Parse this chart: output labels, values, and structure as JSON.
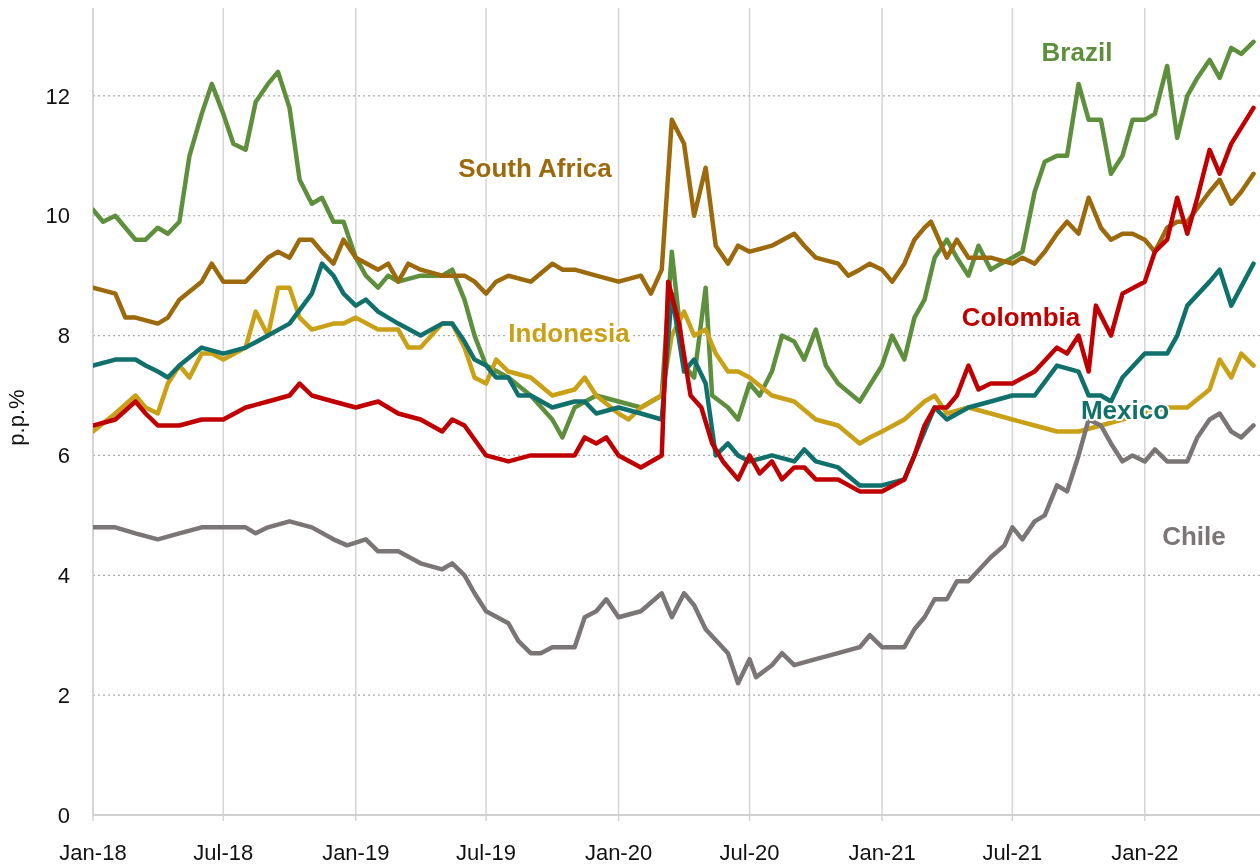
{
  "chart_data": {
    "type": "line",
    "ylabel": "p.p.%",
    "xlim": [
      "2018-01-01",
      "2022-06-10"
    ],
    "ylim": [
      0,
      13.6
    ],
    "yticks": [
      0,
      2,
      4,
      6,
      8,
      10,
      12
    ],
    "xticks": [
      {
        "value": "2018-01-01",
        "label": "Jan-18"
      },
      {
        "value": "2018-07-01",
        "label": "Jul-18"
      },
      {
        "value": "2019-01-01",
        "label": "Jan-19"
      },
      {
        "value": "2019-07-01",
        "label": "Jul-19"
      },
      {
        "value": "2020-01-01",
        "label": "Jan-20"
      },
      {
        "value": "2020-07-01",
        "label": "Jul-20"
      },
      {
        "value": "2021-01-01",
        "label": "Jan-21"
      },
      {
        "value": "2021-07-01",
        "label": "Jul-21"
      },
      {
        "value": "2022-01-01",
        "label": "Jan-22"
      }
    ],
    "grid": true,
    "line_style": "solid",
    "marker": "none",
    "series": [
      {
        "name": "Brazil",
        "color": "#5e8f3c",
        "x": [
          "2018-01-01",
          "2018-01-15",
          "2018-02-01",
          "2018-02-15",
          "2018-03-01",
          "2018-03-15",
          "2018-04-01",
          "2018-04-15",
          "2018-05-01",
          "2018-05-15",
          "2018-06-01",
          "2018-06-15",
          "2018-07-01",
          "2018-07-15",
          "2018-08-01",
          "2018-08-15",
          "2018-09-01",
          "2018-09-15",
          "2018-10-01",
          "2018-10-15",
          "2018-11-01",
          "2018-11-15",
          "2018-12-01",
          "2018-12-15",
          "2019-01-01",
          "2019-01-15",
          "2019-02-01",
          "2019-02-15",
          "2019-03-01",
          "2019-04-01",
          "2019-05-01",
          "2019-05-15",
          "2019-06-01",
          "2019-06-15",
          "2019-07-01",
          "2019-08-01",
          "2019-09-01",
          "2019-10-01",
          "2019-10-15",
          "2019-11-01",
          "2019-12-01",
          "2020-01-01",
          "2020-02-01",
          "2020-03-01",
          "2020-03-15",
          "2020-04-01",
          "2020-04-15",
          "2020-05-01",
          "2020-05-10",
          "2020-06-01",
          "2020-06-15",
          "2020-07-01",
          "2020-07-15",
          "2020-08-01",
          "2020-08-15",
          "2020-09-01",
          "2020-09-15",
          "2020-10-01",
          "2020-10-15",
          "2020-11-01",
          "2020-12-01",
          "2021-01-01",
          "2021-01-15",
          "2021-02-01",
          "2021-02-15",
          "2021-03-01",
          "2021-03-15",
          "2021-04-01",
          "2021-04-15",
          "2021-05-01",
          "2021-05-15",
          "2021-06-01",
          "2021-06-15",
          "2021-07-01",
          "2021-07-15",
          "2021-08-01",
          "2021-08-15",
          "2021-09-01",
          "2021-09-15",
          "2021-10-01",
          "2021-10-15",
          "2021-11-01",
          "2021-11-15",
          "2021-12-01",
          "2021-12-15",
          "2022-01-01",
          "2022-01-15",
          "2022-02-01",
          "2022-02-15",
          "2022-03-01",
          "2022-03-15",
          "2022-04-01",
          "2022-04-15",
          "2022-05-01",
          "2022-05-15",
          "2022-06-01"
        ],
        "values": [
          10.1,
          9.9,
          10.0,
          9.8,
          9.6,
          9.6,
          9.8,
          9.7,
          9.9,
          11.0,
          11.7,
          12.2,
          11.7,
          11.2,
          11.1,
          11.9,
          12.2,
          12.4,
          11.8,
          10.6,
          10.2,
          10.3,
          9.9,
          9.9,
          9.3,
          9.0,
          8.8,
          9.0,
          8.9,
          9.0,
          9.0,
          9.1,
          8.6,
          8.0,
          7.5,
          7.3,
          7.0,
          6.6,
          6.3,
          6.8,
          7.0,
          6.9,
          6.8,
          7.0,
          9.4,
          7.5,
          7.3,
          8.8,
          7.0,
          6.8,
          6.6,
          7.2,
          7.0,
          7.4,
          8.0,
          7.9,
          7.6,
          8.1,
          7.5,
          7.2,
          6.9,
          7.5,
          8.0,
          7.6,
          8.3,
          8.6,
          9.3,
          9.6,
          9.3,
          9.0,
          9.5,
          9.1,
          9.2,
          9.3,
          9.4,
          10.4,
          10.9,
          11.0,
          11.0,
          12.2,
          11.6,
          11.6,
          10.7,
          11.0,
          11.6,
          11.6,
          11.7,
          12.5,
          11.3,
          12.0,
          12.3,
          12.6,
          12.3,
          12.8,
          12.7,
          12.9
        ]
      },
      {
        "name": "South Africa",
        "color": "#9c6a0c",
        "x": [
          "2018-01-01",
          "2018-02-01",
          "2018-02-15",
          "2018-03-01",
          "2018-04-01",
          "2018-04-15",
          "2018-05-01",
          "2018-06-01",
          "2018-06-15",
          "2018-07-01",
          "2018-08-01",
          "2018-09-01",
          "2018-09-15",
          "2018-10-01",
          "2018-10-15",
          "2018-11-01",
          "2018-11-15",
          "2018-12-01",
          "2018-12-15",
          "2019-01-01",
          "2019-02-01",
          "2019-02-15",
          "2019-03-01",
          "2019-03-15",
          "2019-04-01",
          "2019-05-01",
          "2019-06-01",
          "2019-06-15",
          "2019-07-01",
          "2019-07-15",
          "2019-08-01",
          "2019-09-01",
          "2019-10-01",
          "2019-10-15",
          "2019-11-01",
          "2019-12-01",
          "2020-01-01",
          "2020-02-01",
          "2020-02-15",
          "2020-03-01",
          "2020-03-15",
          "2020-04-01",
          "2020-04-15",
          "2020-05-01",
          "2020-05-15",
          "2020-06-01",
          "2020-06-15",
          "2020-07-01",
          "2020-08-01",
          "2020-09-01",
          "2020-09-15",
          "2020-10-01",
          "2020-11-01",
          "2020-11-15",
          "2020-12-01",
          "2020-12-15",
          "2021-01-01",
          "2021-01-15",
          "2021-02-01",
          "2021-02-15",
          "2021-03-01",
          "2021-03-10",
          "2021-04-01",
          "2021-04-15",
          "2021-05-01",
          "2021-06-01",
          "2021-07-01",
          "2021-07-15",
          "2021-08-01",
          "2021-08-15",
          "2021-09-01",
          "2021-09-15",
          "2021-10-01",
          "2021-10-15",
          "2021-11-01",
          "2021-11-15",
          "2021-12-01",
          "2021-12-15",
          "2022-01-01",
          "2022-01-15",
          "2022-02-01",
          "2022-02-15",
          "2022-03-01",
          "2022-04-01",
          "2022-04-15",
          "2022-05-01",
          "2022-05-15",
          "2022-06-01"
        ],
        "values": [
          8.8,
          8.7,
          8.3,
          8.3,
          8.2,
          8.3,
          8.6,
          8.9,
          9.2,
          8.9,
          8.9,
          9.3,
          9.4,
          9.3,
          9.6,
          9.6,
          9.4,
          9.2,
          9.6,
          9.3,
          9.1,
          9.2,
          8.9,
          9.2,
          9.1,
          9.0,
          9.0,
          8.9,
          8.7,
          8.9,
          9.0,
          8.9,
          9.2,
          9.1,
          9.1,
          9.0,
          8.9,
          9.0,
          8.7,
          9.1,
          11.6,
          11.2,
          10.0,
          10.8,
          9.5,
          9.2,
          9.5,
          9.4,
          9.5,
          9.7,
          9.5,
          9.3,
          9.2,
          9.0,
          9.1,
          9.2,
          9.1,
          8.9,
          9.2,
          9.6,
          9.8,
          9.9,
          9.3,
          9.6,
          9.3,
          9.3,
          9.2,
          9.3,
          9.2,
          9.4,
          9.7,
          9.9,
          9.7,
          10.3,
          9.8,
          9.6,
          9.7,
          9.7,
          9.6,
          9.4,
          9.8,
          9.9,
          9.9,
          10.4,
          10.6,
          10.2,
          10.4,
          10.7
        ]
      },
      {
        "name": "Indonesia",
        "color": "#c9a016",
        "x": [
          "2018-01-01",
          "2018-02-01",
          "2018-03-01",
          "2018-03-15",
          "2018-04-01",
          "2018-04-15",
          "2018-05-01",
          "2018-05-15",
          "2018-06-01",
          "2018-06-15",
          "2018-07-01",
          "2018-08-01",
          "2018-08-15",
          "2018-09-01",
          "2018-09-15",
          "2018-10-01",
          "2018-10-15",
          "2018-11-01",
          "2018-12-01",
          "2018-12-15",
          "2019-01-01",
          "2019-02-01",
          "2019-03-01",
          "2019-03-15",
          "2019-04-01",
          "2019-05-01",
          "2019-05-15",
          "2019-06-01",
          "2019-06-15",
          "2019-07-01",
          "2019-07-15",
          "2019-08-01",
          "2019-09-01",
          "2019-10-01",
          "2019-11-01",
          "2019-11-15",
          "2019-12-01",
          "2020-01-01",
          "2020-01-15",
          "2020-02-01",
          "2020-03-01",
          "2020-03-15",
          "2020-04-01",
          "2020-04-15",
          "2020-05-01",
          "2020-05-15",
          "2020-06-01",
          "2020-06-15",
          "2020-07-01",
          "2020-08-01",
          "2020-09-01",
          "2020-10-01",
          "2020-11-01",
          "2020-12-01",
          "2020-12-15",
          "2021-01-01",
          "2021-02-01",
          "2021-03-01",
          "2021-03-15",
          "2021-04-01",
          "2021-05-01",
          "2021-06-01",
          "2021-07-01",
          "2021-08-01",
          "2021-09-01",
          "2021-10-01",
          "2021-11-01",
          "2021-12-01",
          "2022-01-01",
          "2022-02-01",
          "2022-03-01",
          "2022-04-01",
          "2022-04-15",
          "2022-05-01",
          "2022-05-15",
          "2022-06-01"
        ],
        "values": [
          6.4,
          6.7,
          7.0,
          6.8,
          6.7,
          7.2,
          7.5,
          7.3,
          7.7,
          7.7,
          7.6,
          7.8,
          8.4,
          8.0,
          8.8,
          8.8,
          8.3,
          8.1,
          8.2,
          8.2,
          8.3,
          8.1,
          8.1,
          7.8,
          7.8,
          8.2,
          8.2,
          7.8,
          7.3,
          7.2,
          7.6,
          7.4,
          7.3,
          7.0,
          7.1,
          7.3,
          7.0,
          6.7,
          6.6,
          6.8,
          7.0,
          8.0,
          8.4,
          8.0,
          8.1,
          7.7,
          7.4,
          7.4,
          7.3,
          7.0,
          6.9,
          6.6,
          6.5,
          6.2,
          6.3,
          6.4,
          6.6,
          6.9,
          7.0,
          6.7,
          6.8,
          6.7,
          6.6,
          6.5,
          6.4,
          6.4,
          6.5,
          6.6,
          6.7,
          6.8,
          6.8,
          7.1,
          7.6,
          7.3,
          7.7,
          7.5
        ]
      },
      {
        "name": "Mexico",
        "color": "#10706c",
        "x": [
          "2018-01-01",
          "2018-02-01",
          "2018-03-01",
          "2018-03-15",
          "2018-04-01",
          "2018-04-15",
          "2018-05-01",
          "2018-06-01",
          "2018-07-01",
          "2018-08-01",
          "2018-09-01",
          "2018-10-01",
          "2018-11-01",
          "2018-11-15",
          "2018-12-01",
          "2018-12-15",
          "2019-01-01",
          "2019-01-15",
          "2019-02-01",
          "2019-03-01",
          "2019-04-01",
          "2019-05-01",
          "2019-05-15",
          "2019-06-01",
          "2019-06-15",
          "2019-07-01",
          "2019-07-15",
          "2019-08-01",
          "2019-08-15",
          "2019-09-01",
          "2019-10-01",
          "2019-11-01",
          "2019-11-15",
          "2019-12-01",
          "2020-01-01",
          "2020-02-01",
          "2020-03-01",
          "2020-03-15",
          "2020-04-01",
          "2020-04-15",
          "2020-05-01",
          "2020-05-15",
          "2020-06-01",
          "2020-06-15",
          "2020-07-01",
          "2020-08-01",
          "2020-09-01",
          "2020-09-15",
          "2020-10-01",
          "2020-11-01",
          "2020-12-01",
          "2021-01-01",
          "2021-02-01",
          "2021-02-15",
          "2021-03-01",
          "2021-03-15",
          "2021-04-01",
          "2021-05-01",
          "2021-06-01",
          "2021-07-01",
          "2021-08-01",
          "2021-09-01",
          "2021-10-01",
          "2021-10-15",
          "2021-11-01",
          "2021-11-15",
          "2021-12-01",
          "2022-01-01",
          "2022-02-01",
          "2022-02-15",
          "2022-03-01",
          "2022-04-01",
          "2022-04-15",
          "2022-05-01",
          "2022-06-01"
        ],
        "values": [
          7.5,
          7.6,
          7.6,
          7.5,
          7.4,
          7.3,
          7.5,
          7.8,
          7.7,
          7.8,
          8.0,
          8.2,
          8.7,
          9.2,
          9.0,
          8.7,
          8.5,
          8.6,
          8.4,
          8.2,
          8.0,
          8.2,
          8.2,
          7.9,
          7.6,
          7.5,
          7.3,
          7.3,
          7.0,
          7.0,
          6.8,
          6.9,
          6.9,
          6.7,
          6.8,
          6.7,
          6.6,
          8.7,
          7.4,
          7.6,
          7.2,
          6.0,
          6.2,
          6.0,
          5.9,
          6.0,
          5.9,
          6.1,
          5.9,
          5.8,
          5.5,
          5.5,
          5.6,
          6.0,
          6.4,
          6.8,
          6.6,
          6.8,
          6.9,
          7.0,
          7.0,
          7.5,
          7.4,
          7.0,
          7.0,
          6.9,
          7.3,
          7.7,
          7.7,
          8.0,
          8.5,
          8.9,
          9.1,
          8.5,
          9.2
        ]
      },
      {
        "name": "Colombia",
        "color": "#c00000",
        "x": [
          "2018-01-01",
          "2018-02-01",
          "2018-03-01",
          "2018-03-15",
          "2018-04-01",
          "2018-05-01",
          "2018-06-01",
          "2018-07-01",
          "2018-08-01",
          "2018-09-01",
          "2018-10-01",
          "2018-10-15",
          "2018-11-01",
          "2018-12-01",
          "2019-01-01",
          "2019-02-01",
          "2019-03-01",
          "2019-04-01",
          "2019-05-01",
          "2019-05-15",
          "2019-06-01",
          "2019-07-01",
          "2019-08-01",
          "2019-09-01",
          "2019-10-01",
          "2019-11-01",
          "2019-11-15",
          "2019-12-01",
          "2019-12-15",
          "2020-01-01",
          "2020-02-01",
          "2020-03-01",
          "2020-03-10",
          "2020-03-25",
          "2020-04-10",
          "2020-04-25",
          "2020-05-10",
          "2020-05-25",
          "2020-06-15",
          "2020-07-01",
          "2020-07-15",
          "2020-08-01",
          "2020-08-15",
          "2020-09-01",
          "2020-09-15",
          "2020-10-01",
          "2020-11-01",
          "2020-12-01",
          "2021-01-01",
          "2021-02-01",
          "2021-02-15",
          "2021-03-01",
          "2021-03-15",
          "2021-04-01",
          "2021-04-15",
          "2021-05-01",
          "2021-05-15",
          "2021-06-01",
          "2021-07-01",
          "2021-08-01",
          "2021-09-01",
          "2021-09-15",
          "2021-10-01",
          "2021-10-15",
          "2021-10-25",
          "2021-11-15",
          "2021-12-01",
          "2022-01-01",
          "2022-01-15",
          "2022-02-01",
          "2022-02-15",
          "2022-03-01",
          "2022-03-15",
          "2022-04-01",
          "2022-04-15",
          "2022-05-01",
          "2022-06-01"
        ],
        "values": [
          6.5,
          6.6,
          6.9,
          6.7,
          6.5,
          6.5,
          6.6,
          6.6,
          6.8,
          6.9,
          7.0,
          7.2,
          7.0,
          6.9,
          6.8,
          6.9,
          6.7,
          6.6,
          6.4,
          6.6,
          6.5,
          6.0,
          5.9,
          6.0,
          6.0,
          6.0,
          6.3,
          6.2,
          6.3,
          6.0,
          5.8,
          6.0,
          8.9,
          8.2,
          7.0,
          6.8,
          6.2,
          5.9,
          5.6,
          6.0,
          5.7,
          5.9,
          5.6,
          5.8,
          5.8,
          5.6,
          5.6,
          5.4,
          5.4,
          5.6,
          6.0,
          6.5,
          6.8,
          6.8,
          7.0,
          7.5,
          7.1,
          7.2,
          7.2,
          7.4,
          7.8,
          7.7,
          8.0,
          7.4,
          8.5,
          8.0,
          8.7,
          8.9,
          9.4,
          9.6,
          10.3,
          9.7,
          10.3,
          11.1,
          10.7,
          11.2,
          11.8
        ]
      },
      {
        "name": "Chile",
        "color": "#7b7576",
        "x": [
          "2018-01-01",
          "2018-02-01",
          "2018-03-01",
          "2018-04-01",
          "2018-05-01",
          "2018-06-01",
          "2018-07-01",
          "2018-08-01",
          "2018-08-15",
          "2018-09-01",
          "2018-10-01",
          "2018-11-01",
          "2018-12-01",
          "2018-12-20",
          "2019-01-15",
          "2019-02-01",
          "2019-03-01",
          "2019-04-01",
          "2019-05-01",
          "2019-05-15",
          "2019-06-01",
          "2019-06-15",
          "2019-07-01",
          "2019-08-01",
          "2019-08-15",
          "2019-09-01",
          "2019-09-15",
          "2019-10-01",
          "2019-11-01",
          "2019-11-15",
          "2019-12-01",
          "2019-12-15",
          "2020-01-01",
          "2020-02-01",
          "2020-03-01",
          "2020-03-15",
          "2020-04-01",
          "2020-04-15",
          "2020-05-01",
          "2020-06-01",
          "2020-06-15",
          "2020-07-01",
          "2020-07-10",
          "2020-08-01",
          "2020-08-15",
          "2020-09-01",
          "2020-10-01",
          "2020-11-01",
          "2020-12-01",
          "2020-12-15",
          "2021-01-01",
          "2021-02-01",
          "2021-02-15",
          "2021-03-01",
          "2021-03-15",
          "2021-04-01",
          "2021-04-15",
          "2021-05-01",
          "2021-06-01",
          "2021-06-20",
          "2021-07-01",
          "2021-07-15",
          "2021-08-01",
          "2021-08-15",
          "2021-09-01",
          "2021-09-15",
          "2021-10-01",
          "2021-10-15",
          "2021-11-01",
          "2021-11-15",
          "2021-12-01",
          "2021-12-15",
          "2022-01-01",
          "2022-01-15",
          "2022-02-01",
          "2022-03-01",
          "2022-03-15",
          "2022-04-01",
          "2022-04-15",
          "2022-05-01",
          "2022-05-15",
          "2022-06-01"
        ],
        "values": [
          4.8,
          4.8,
          4.7,
          4.6,
          4.7,
          4.8,
          4.8,
          4.8,
          4.7,
          4.8,
          4.9,
          4.8,
          4.6,
          4.5,
          4.6,
          4.4,
          4.4,
          4.2,
          4.1,
          4.2,
          4.0,
          3.7,
          3.4,
          3.2,
          2.9,
          2.7,
          2.7,
          2.8,
          2.8,
          3.3,
          3.4,
          3.6,
          3.3,
          3.4,
          3.7,
          3.3,
          3.7,
          3.5,
          3.1,
          2.7,
          2.2,
          2.6,
          2.3,
          2.5,
          2.7,
          2.5,
          2.6,
          2.7,
          2.8,
          3.0,
          2.8,
          2.8,
          3.1,
          3.3,
          3.6,
          3.6,
          3.9,
          3.9,
          4.3,
          4.5,
          4.8,
          4.6,
          4.9,
          5.0,
          5.5,
          5.4,
          6.0,
          6.6,
          6.5,
          6.2,
          5.9,
          6.0,
          5.9,
          6.1,
          5.9,
          5.9,
          6.3,
          6.6,
          6.7,
          6.4,
          6.3,
          6.5
        ]
      }
    ]
  }
}
